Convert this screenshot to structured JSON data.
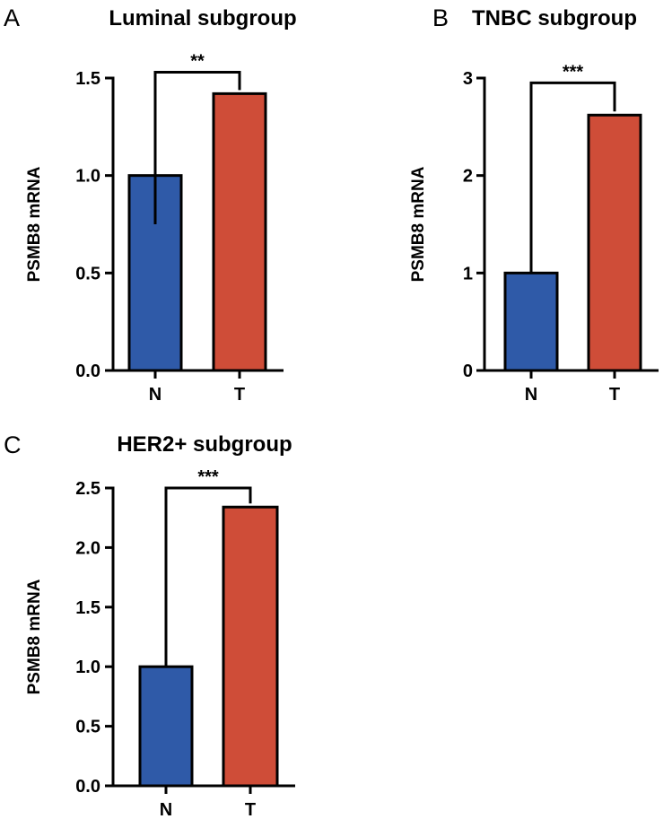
{
  "chart_data": [
    {
      "panel": "A",
      "type": "bar",
      "title": "Luminal subgroup",
      "ylabel": "PSMB8 mRNA",
      "xlabel": "",
      "categories": [
        "N",
        "T"
      ],
      "values": [
        1.0,
        1.42
      ],
      "error_low": [
        0.75,
        null
      ],
      "colors": [
        "#2f5aa8",
        "#cf4d38"
      ],
      "ylim": [
        0,
        1.5
      ],
      "yticks": [
        "0.0",
        "0.5",
        "1.0",
        "1.5"
      ],
      "ytick_values": [
        0,
        0.5,
        1.0,
        1.5
      ],
      "significance": "**",
      "bracket_y": 1.53
    },
    {
      "panel": "B",
      "type": "bar",
      "title": "TNBC subgroup",
      "ylabel": "PSMB8 mRNA",
      "xlabel": "",
      "categories": [
        "N",
        "T"
      ],
      "values": [
        1.0,
        2.62
      ],
      "error_low": [
        null,
        null
      ],
      "colors": [
        "#2f5aa8",
        "#cf4d38"
      ],
      "ylim": [
        0,
        3
      ],
      "yticks": [
        "0",
        "1",
        "2",
        "3"
      ],
      "ytick_values": [
        0,
        1,
        2,
        3
      ],
      "significance": "***",
      "bracket_y": 2.95
    },
    {
      "panel": "C",
      "type": "bar",
      "title": "HER2+ subgroup",
      "ylabel": "PSMB8 mRNA",
      "xlabel": "",
      "categories": [
        "N",
        "T"
      ],
      "values": [
        1.0,
        2.34
      ],
      "error_low": [
        null,
        null
      ],
      "colors": [
        "#2f5aa8",
        "#cf4d38"
      ],
      "ylim": [
        0,
        2.5
      ],
      "yticks": [
        "0.0",
        "0.5",
        "1.0",
        "1.5",
        "2.0",
        "2.5"
      ],
      "ytick_values": [
        0,
        0.5,
        1.0,
        1.5,
        2.0,
        2.5
      ],
      "significance": "***",
      "bracket_y": 2.5
    }
  ]
}
